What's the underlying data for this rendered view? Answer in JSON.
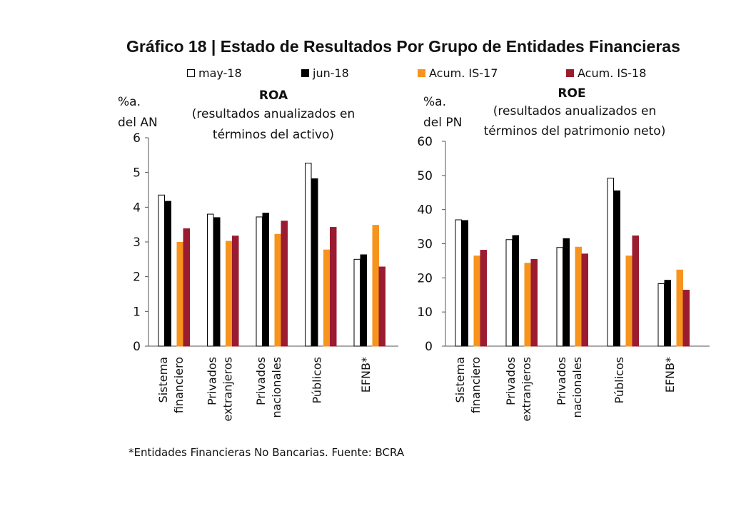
{
  "figure": {
    "title": "Gráfico 18 | Estado de Resultados Por Grupo de Entidades Financieras",
    "footnote": "*Entidades Financieras No Bancarias. Fuente: BCRA"
  },
  "legend": [
    {
      "name": "may-18",
      "color": "#ffffff",
      "border": "#000000"
    },
    {
      "name": "jun-18",
      "color": "#000000",
      "border": "#000000"
    },
    {
      "name": "Acum. IS-17",
      "color": "#f7941d",
      "border": "#f7941d"
    },
    {
      "name": "Acum. IS-18",
      "color": "#9b1b30",
      "border": "#9b1b30"
    }
  ],
  "chart_data": [
    {
      "type": "bar",
      "title": "ROA",
      "subtitle": [
        "(resultados anualizados en",
        "términos del activo)"
      ],
      "ylabel": [
        "%a.",
        "del AN"
      ],
      "ylim": [
        0,
        6
      ],
      "yticks": [
        0,
        1,
        2,
        3,
        4,
        5,
        6
      ],
      "categories": [
        [
          "Sistema",
          "financiero"
        ],
        [
          "Privados",
          "extranjeros"
        ],
        [
          "Privados",
          "nacionales"
        ],
        [
          "Públicos"
        ],
        [
          "EFNB*"
        ]
      ],
      "series": [
        {
          "name": "may-18",
          "values": [
            4.35,
            3.8,
            3.72,
            5.27,
            2.5
          ]
        },
        {
          "name": "jun-18",
          "values": [
            4.17,
            3.7,
            3.83,
            4.82,
            2.63
          ]
        },
        {
          "name": "Acum. IS-17",
          "values": [
            2.99,
            null,
            3.22,
            2.77,
            3.48
          ]
        },
        {
          "name": "Acum. IS-18",
          "values": [
            3.38,
            3.17,
            3.6,
            3.42,
            2.28
          ]
        }
      ],
      "series_extra": {
        "Acum. IS-17": {
          "1": 3.02
        }
      }
    },
    {
      "type": "bar",
      "title": "ROE",
      "subtitle": [
        "(resultados anualizados en",
        "términos del patrimonio neto)"
      ],
      "ylabel": [
        "%a.",
        "del PN"
      ],
      "ylim": [
        0,
        60
      ],
      "yticks": [
        0,
        10,
        20,
        30,
        40,
        50,
        60
      ],
      "categories": [
        [
          "Sistema",
          "financiero"
        ],
        [
          "Privados",
          "extranjeros"
        ],
        [
          "Privados",
          "nacionales"
        ],
        [
          "Públicos"
        ],
        [
          "EFNB*"
        ]
      ],
      "series": [
        {
          "name": "may-18",
          "values": [
            37.0,
            31.2,
            28.9,
            49.2,
            18.3
          ]
        },
        {
          "name": "jun-18",
          "values": [
            36.8,
            32.4,
            31.5,
            45.5,
            19.3
          ]
        },
        {
          "name": "Acum. IS-17",
          "values": [
            26.4,
            24.3,
            29.0,
            26.4,
            22.3
          ]
        },
        {
          "name": "Acum. IS-18",
          "values": [
            28.1,
            25.4,
            27.0,
            32.3,
            16.4
          ]
        }
      ]
    }
  ]
}
